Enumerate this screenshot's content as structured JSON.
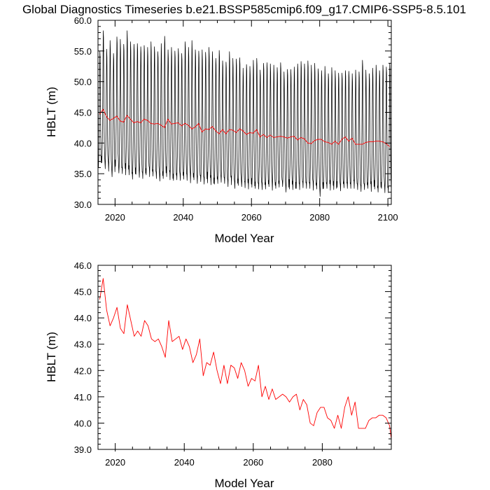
{
  "figure": {
    "title": "Global Diagnostics Timeseries b.e21.BSSP585cmip6.f09_g17.CMIP6-SSP5-8.5.101"
  },
  "chart_data": [
    {
      "type": "line",
      "id": "top",
      "xlabel": "Model Year",
      "ylabel": "HBLT (m)",
      "xlim": [
        2015,
        2101
      ],
      "ylim": [
        30,
        60
      ],
      "xticks": [
        2020,
        2040,
        2060,
        2080,
        2100
      ],
      "yticks": [
        30,
        35,
        40,
        45,
        50,
        55,
        60
      ],
      "ytick_labels": [
        "30.0",
        "35.0",
        "40.0",
        "45.0",
        "50.0",
        "55.0",
        "60.0"
      ],
      "grid": false,
      "series": [
        {
          "kind": "monthly",
          "color": "#000000",
          "start_year": 2015,
          "annual_max": [
            55.0,
            58.3,
            55.3,
            56.7,
            54.6,
            57.3,
            56.9,
            56.1,
            58.3,
            56.5,
            56.1,
            56.2,
            55.7,
            55.9,
            55.6,
            56.5,
            55.7,
            54.9,
            56.2,
            57.4,
            55.2,
            55.6,
            55.0,
            55.4,
            54.6,
            56.5,
            55.6,
            56.7,
            55.2,
            55.0,
            55.2,
            54.8,
            55.6,
            54.9,
            53.8,
            55.1,
            53.4,
            53.2,
            54.9,
            53.8,
            53.7,
            53.9,
            52.2,
            52.8,
            52.5,
            53.5,
            53.8,
            51.9,
            53.0,
            53.1,
            52.9,
            52.7,
            52.3,
            53.1,
            51.6,
            52.0,
            52.0,
            52.4,
            52.9,
            53.3,
            52.9,
            53.4,
            52.7,
            53.0,
            52.1,
            51.8,
            52.5,
            51.3,
            52.3,
            51.8,
            51.4,
            51.4,
            51.8,
            51.7,
            51.3,
            51.9,
            51.6,
            53.5,
            51.9,
            51.3,
            52.2,
            52.7,
            51.8,
            52.7,
            52.4,
            53.0
          ],
          "annual_min": [
            36.0,
            36.8,
            35.8,
            35.4,
            34.5,
            36.2,
            35.1,
            35.0,
            34.8,
            34.8,
            34.1,
            34.9,
            34.4,
            34.2,
            34.8,
            34.5,
            34.6,
            34.2,
            33.8,
            34.2,
            34.5,
            34.0,
            33.9,
            34.0,
            33.9,
            34.1,
            33.9,
            33.5,
            34.0,
            33.4,
            33.7,
            33.3,
            33.5,
            33.2,
            33.3,
            33.4,
            33.6,
            33.4,
            32.9,
            33.2,
            32.6,
            33.1,
            32.9,
            32.7,
            32.5,
            32.8,
            32.6,
            32.5,
            32.4,
            32.5,
            32.9,
            32.3,
            32.6,
            32.8,
            32.9,
            32.0,
            32.5,
            32.4,
            32.6,
            32.4,
            32.7,
            32.6,
            32.6,
            32.3,
            32.5,
            31.3,
            32.6,
            32.6,
            32.3,
            32.4,
            32.8,
            32.2,
            32.7,
            32.6,
            32.6,
            32.6,
            32.4,
            32.1,
            32.4,
            32.6,
            32.1,
            32.5,
            32.0,
            32.6,
            31.9,
            31.9
          ]
        },
        {
          "kind": "annual",
          "color": "#ff0000",
          "x": [
            2015.5,
            2016.5,
            2017.5,
            2018.5,
            2019.5,
            2020.5,
            2021.5,
            2022.5,
            2023.5,
            2024.5,
            2025.5,
            2026.5,
            2027.5,
            2028.5,
            2029.5,
            2030.5,
            2031.5,
            2032.5,
            2033.5,
            2034.5,
            2035.5,
            2036.5,
            2037.5,
            2038.5,
            2039.5,
            2040.5,
            2041.5,
            2042.5,
            2043.5,
            2044.5,
            2045.5,
            2046.5,
            2047.5,
            2048.5,
            2049.5,
            2050.5,
            2051.5,
            2052.5,
            2053.5,
            2054.5,
            2055.5,
            2056.5,
            2057.5,
            2058.5,
            2059.5,
            2060.5,
            2061.5,
            2062.5,
            2063.5,
            2064.5,
            2065.5,
            2066.5,
            2067.5,
            2068.5,
            2069.5,
            2070.5,
            2071.5,
            2072.5,
            2073.5,
            2074.5,
            2075.5,
            2076.5,
            2077.5,
            2078.5,
            2079.5,
            2080.5,
            2081.5,
            2082.5,
            2083.5,
            2084.5,
            2085.5,
            2086.5,
            2087.5,
            2088.5,
            2089.5,
            2090.5,
            2091.5,
            2092.5,
            2093.5,
            2094.5,
            2095.5,
            2096.5,
            2097.5,
            2098.5,
            2099.5,
            2100.5
          ],
          "values": [
            44.7,
            45.5,
            44.3,
            43.7,
            44.0,
            44.4,
            43.6,
            43.4,
            44.5,
            43.9,
            43.3,
            43.5,
            43.3,
            43.9,
            43.7,
            43.2,
            43.1,
            43.2,
            42.9,
            42.5,
            43.9,
            43.1,
            43.2,
            43.3,
            42.8,
            43.2,
            42.9,
            42.3,
            42.6,
            43.2,
            41.8,
            42.3,
            42.2,
            42.7,
            42.0,
            41.5,
            42.2,
            41.5,
            42.2,
            42.1,
            41.7,
            42.3,
            42.0,
            41.4,
            41.7,
            41.6,
            42.2,
            41.0,
            41.4,
            40.9,
            41.3,
            40.9,
            41.0,
            41.1,
            41.0,
            40.8,
            41.0,
            41.1,
            40.5,
            40.9,
            40.7,
            40.0,
            39.9,
            40.4,
            40.6,
            40.6,
            40.2,
            40.1,
            39.8,
            40.3,
            39.8,
            40.6,
            41.0,
            40.3,
            40.8,
            39.8,
            39.8,
            39.8,
            40.1,
            40.2,
            40.2,
            40.3,
            40.3,
            40.2,
            39.9,
            39.4
          ]
        }
      ]
    },
    {
      "type": "line",
      "id": "bottom",
      "xlabel": "Model Year",
      "ylabel": "HBLT (m)",
      "xlim": [
        2015,
        2100
      ],
      "ylim": [
        39,
        46
      ],
      "xticks": [
        2020,
        2040,
        2060,
        2080
      ],
      "yticks": [
        39,
        40,
        41,
        42,
        43,
        44,
        45,
        46
      ],
      "ytick_labels": [
        "39.0",
        "40.0",
        "41.0",
        "42.0",
        "43.0",
        "44.0",
        "45.0",
        "46.0"
      ],
      "grid": false,
      "series": [
        {
          "kind": "annual",
          "color": "#ff0000",
          "x": [
            2015.5,
            2016.5,
            2017.5,
            2018.5,
            2019.5,
            2020.5,
            2021.5,
            2022.5,
            2023.5,
            2024.5,
            2025.5,
            2026.5,
            2027.5,
            2028.5,
            2029.5,
            2030.5,
            2031.5,
            2032.5,
            2033.5,
            2034.5,
            2035.5,
            2036.5,
            2037.5,
            2038.5,
            2039.5,
            2040.5,
            2041.5,
            2042.5,
            2043.5,
            2044.5,
            2045.5,
            2046.5,
            2047.5,
            2048.5,
            2049.5,
            2050.5,
            2051.5,
            2052.5,
            2053.5,
            2054.5,
            2055.5,
            2056.5,
            2057.5,
            2058.5,
            2059.5,
            2060.5,
            2061.5,
            2062.5,
            2063.5,
            2064.5,
            2065.5,
            2066.5,
            2067.5,
            2068.5,
            2069.5,
            2070.5,
            2071.5,
            2072.5,
            2073.5,
            2074.5,
            2075.5,
            2076.5,
            2077.5,
            2078.5,
            2079.5,
            2080.5,
            2081.5,
            2082.5,
            2083.5,
            2084.5,
            2085.5,
            2086.5,
            2087.5,
            2088.5,
            2089.5,
            2090.5,
            2091.5,
            2092.5,
            2093.5,
            2094.5,
            2095.5,
            2096.5,
            2097.5,
            2098.5,
            2099.5,
            2100.0
          ],
          "values": [
            44.7,
            45.5,
            44.3,
            43.7,
            44.0,
            44.4,
            43.6,
            43.4,
            44.5,
            43.9,
            43.3,
            43.5,
            43.3,
            43.9,
            43.7,
            43.2,
            43.1,
            43.2,
            42.9,
            42.5,
            43.9,
            43.1,
            43.2,
            43.3,
            42.8,
            43.2,
            42.9,
            42.3,
            42.6,
            43.2,
            41.8,
            42.3,
            42.2,
            42.7,
            42.0,
            41.5,
            42.2,
            41.5,
            42.2,
            42.1,
            41.7,
            42.3,
            42.0,
            41.4,
            41.7,
            41.6,
            42.2,
            41.0,
            41.4,
            40.9,
            41.3,
            40.9,
            41.0,
            41.1,
            41.0,
            40.8,
            41.0,
            41.1,
            40.5,
            40.9,
            40.7,
            40.0,
            39.9,
            40.4,
            40.6,
            40.6,
            40.2,
            40.1,
            39.8,
            40.3,
            39.8,
            40.6,
            41.0,
            40.3,
            40.8,
            39.8,
            39.8,
            39.8,
            40.1,
            40.2,
            40.2,
            40.3,
            40.3,
            40.2,
            39.9,
            39.4
          ]
        }
      ]
    }
  ]
}
